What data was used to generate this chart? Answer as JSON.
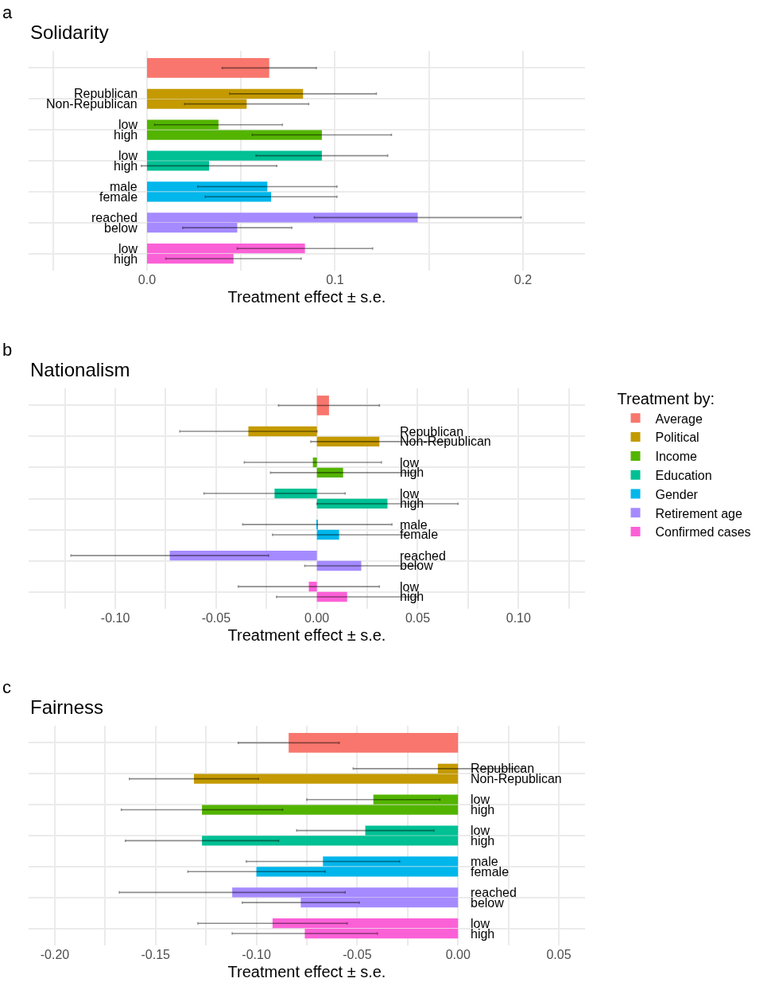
{
  "chart_data": [
    {
      "type": "bar",
      "orientation": "horizontal",
      "title": "Solidarity",
      "annotations": [
        "a"
      ],
      "xlabel": "Treatment effect ± s.e.",
      "grid": true,
      "legend": false,
      "categories": [
        null,
        "Republican",
        "Non-Republican",
        "low",
        "high",
        "low",
        "high",
        "male",
        "female",
        "reached",
        "below",
        "low",
        "high"
      ],
      "xlim": [
        -0.063,
        0.233
      ],
      "xticks": [
        {
          "value": -0.05,
          "label": null
        },
        {
          "value": 0,
          "label": "0.0"
        },
        {
          "value": 0.05,
          "label": null
        },
        {
          "value": 0.1,
          "label": "0.1"
        },
        {
          "value": 0.15,
          "label": null
        },
        {
          "value": 0.2,
          "label": "0.2"
        }
      ],
      "series": [
        {
          "color": "#f8766d",
          "values": [
            0.065,
            null,
            null,
            null,
            null,
            null,
            null,
            null,
            null,
            null,
            null,
            null,
            null
          ],
          "errors": [
            0.025,
            null,
            null,
            null,
            null,
            null,
            null,
            null,
            null,
            null,
            null,
            null,
            null
          ]
        },
        {
          "color": "#c49a00",
          "values": [
            null,
            0.083,
            0.053,
            null,
            null,
            null,
            null,
            null,
            null,
            null,
            null,
            null,
            null
          ],
          "errors": [
            null,
            0.039,
            0.033,
            null,
            null,
            null,
            null,
            null,
            null,
            null,
            null,
            null,
            null
          ]
        },
        {
          "color": "#53b400",
          "values": [
            null,
            null,
            null,
            0.038,
            0.093,
            null,
            null,
            null,
            null,
            null,
            null,
            null,
            null
          ],
          "errors": [
            null,
            null,
            null,
            0.034,
            0.037,
            null,
            null,
            null,
            null,
            null,
            null,
            null,
            null
          ]
        },
        {
          "color": "#00c094",
          "values": [
            null,
            null,
            null,
            null,
            null,
            0.093,
            0.033,
            null,
            null,
            null,
            null,
            null,
            null
          ],
          "errors": [
            null,
            null,
            null,
            null,
            null,
            0.035,
            0.036,
            null,
            null,
            null,
            null,
            null,
            null
          ]
        },
        {
          "color": "#00b6eb",
          "values": [
            null,
            null,
            null,
            null,
            null,
            null,
            null,
            0.064,
            0.066,
            null,
            null,
            null,
            null
          ],
          "errors": [
            null,
            null,
            null,
            null,
            null,
            null,
            null,
            0.037,
            0.035,
            null,
            null,
            null,
            null
          ]
        },
        {
          "color": "#a58aff",
          "values": [
            null,
            null,
            null,
            null,
            null,
            null,
            null,
            null,
            null,
            0.144,
            0.048,
            null,
            null
          ],
          "errors": [
            null,
            null,
            null,
            null,
            null,
            null,
            null,
            null,
            null,
            0.055,
            0.029,
            null,
            null
          ]
        },
        {
          "color": "#fb61d7",
          "values": [
            null,
            null,
            null,
            null,
            null,
            null,
            null,
            null,
            null,
            null,
            null,
            0.084,
            0.046
          ],
          "errors": [
            null,
            null,
            null,
            null,
            null,
            null,
            null,
            null,
            null,
            null,
            null,
            0.036,
            0.036
          ]
        }
      ]
    },
    {
      "type": "bar",
      "orientation": "horizontal",
      "title": "Nationalism",
      "annotations": [
        "b"
      ],
      "xlabel": "Treatment effect ± s.e.",
      "grid": true,
      "legend": "right",
      "legend_title": "Treatment by:",
      "categories": [
        null,
        "Republican",
        "Non-Republican",
        "low",
        "high",
        "low",
        "high",
        "male",
        "female",
        "reached",
        "below",
        "low",
        "high"
      ],
      "xlim": [
        -0.143,
        0.133
      ],
      "xticks": [
        {
          "value": -0.125,
          "label": null
        },
        {
          "value": -0.1,
          "label": "-0.10"
        },
        {
          "value": -0.075,
          "label": null
        },
        {
          "value": -0.05,
          "label": "-0.05"
        },
        {
          "value": -0.025,
          "label": null
        },
        {
          "value": 0,
          "label": "0.00"
        },
        {
          "value": 0.025,
          "label": null
        },
        {
          "value": 0.05,
          "label": "0.05"
        },
        {
          "value": 0.075,
          "label": null
        },
        {
          "value": 0.1,
          "label": "0.10"
        },
        {
          "value": 0.125,
          "label": null
        }
      ],
      "series": [
        {
          "name": "Average",
          "color": "#f8766d",
          "values": [
            0.006,
            null,
            null,
            null,
            null,
            null,
            null,
            null,
            null,
            null,
            null,
            null,
            null
          ],
          "errors": [
            0.025,
            null,
            null,
            null,
            null,
            null,
            null,
            null,
            null,
            null,
            null,
            null,
            null
          ]
        },
        {
          "name": "Political",
          "color": "#c49a00",
          "values": [
            null,
            -0.034,
            0.031,
            null,
            null,
            null,
            null,
            null,
            null,
            null,
            null,
            null,
            null
          ],
          "errors": [
            null,
            0.034,
            0.034,
            null,
            null,
            null,
            null,
            null,
            null,
            null,
            null,
            null,
            null
          ]
        },
        {
          "name": "Income",
          "color": "#53b400",
          "values": [
            null,
            null,
            null,
            -0.002,
            0.013,
            null,
            null,
            null,
            null,
            null,
            null,
            null,
            null
          ],
          "errors": [
            null,
            null,
            null,
            0.034,
            0.036,
            null,
            null,
            null,
            null,
            null,
            null,
            null,
            null
          ]
        },
        {
          "name": "Education",
          "color": "#00c094",
          "values": [
            null,
            null,
            null,
            null,
            null,
            -0.021,
            0.035,
            null,
            null,
            null,
            null,
            null,
            null
          ],
          "errors": [
            null,
            null,
            null,
            null,
            null,
            0.035,
            0.035,
            null,
            null,
            null,
            null,
            null,
            null
          ]
        },
        {
          "name": "Gender",
          "color": "#00b6eb",
          "values": [
            null,
            null,
            null,
            null,
            null,
            null,
            null,
            0.0002,
            0.011,
            null,
            null,
            null,
            null
          ],
          "errors": [
            null,
            null,
            null,
            null,
            null,
            null,
            null,
            0.037,
            0.033,
            null,
            null,
            null,
            null
          ]
        },
        {
          "name": "Retirement age",
          "color": "#a58aff",
          "values": [
            null,
            null,
            null,
            null,
            null,
            null,
            null,
            null,
            null,
            -0.073,
            0.022,
            null,
            null
          ],
          "errors": [
            null,
            null,
            null,
            null,
            null,
            null,
            null,
            null,
            null,
            0.049,
            0.028,
            null,
            null
          ]
        },
        {
          "name": "Confirmed cases",
          "color": "#fb61d7",
          "values": [
            null,
            null,
            null,
            null,
            null,
            null,
            null,
            null,
            null,
            null,
            null,
            -0.004,
            0.015
          ],
          "errors": [
            null,
            null,
            null,
            null,
            null,
            null,
            null,
            null,
            null,
            null,
            null,
            0.035,
            0.035
          ]
        }
      ]
    },
    {
      "type": "bar",
      "orientation": "horizontal",
      "title": "Fairness",
      "annotations": [
        "c"
      ],
      "xlabel": "Treatment effect ± s.e.",
      "grid": true,
      "legend": false,
      "categories": [
        null,
        "Republican",
        "Non-Republican",
        "low",
        "high",
        "low",
        "high",
        "male",
        "female",
        "reached",
        "below",
        "low",
        "high"
      ],
      "xlim": [
        -0.213,
        0.063
      ],
      "xticks": [
        {
          "value": -0.2,
          "label": "-0.20"
        },
        {
          "value": -0.175,
          "label": null
        },
        {
          "value": -0.15,
          "label": "-0.15"
        },
        {
          "value": -0.125,
          "label": null
        },
        {
          "value": -0.1,
          "label": "-0.10"
        },
        {
          "value": -0.075,
          "label": null
        },
        {
          "value": -0.05,
          "label": "-0.05"
        },
        {
          "value": -0.025,
          "label": null
        },
        {
          "value": 0,
          "label": "0.00"
        },
        {
          "value": 0.025,
          "label": null
        },
        {
          "value": 0.05,
          "label": "0.05"
        }
      ],
      "series": [
        {
          "color": "#f8766d",
          "values": [
            -0.084,
            null,
            null,
            null,
            null,
            null,
            null,
            null,
            null,
            null,
            null,
            null,
            null
          ],
          "errors": [
            0.025,
            null,
            null,
            null,
            null,
            null,
            null,
            null,
            null,
            null,
            null,
            null,
            null
          ]
        },
        {
          "color": "#c49a00",
          "values": [
            null,
            -0.01,
            -0.131,
            null,
            null,
            null,
            null,
            null,
            null,
            null,
            null,
            null,
            null
          ],
          "errors": [
            null,
            0.042,
            0.032,
            null,
            null,
            null,
            null,
            null,
            null,
            null,
            null,
            null,
            null
          ]
        },
        {
          "color": "#53b400",
          "values": [
            null,
            null,
            null,
            -0.042,
            -0.127,
            null,
            null,
            null,
            null,
            null,
            null,
            null,
            null
          ],
          "errors": [
            null,
            null,
            null,
            0.033,
            0.04,
            null,
            null,
            null,
            null,
            null,
            null,
            null,
            null
          ]
        },
        {
          "color": "#00c094",
          "values": [
            null,
            null,
            null,
            null,
            null,
            -0.046,
            -0.127,
            null,
            null,
            null,
            null,
            null,
            null
          ],
          "errors": [
            null,
            null,
            null,
            null,
            null,
            0.034,
            0.038,
            null,
            null,
            null,
            null,
            null,
            null
          ]
        },
        {
          "color": "#00b6eb",
          "values": [
            null,
            null,
            null,
            null,
            null,
            null,
            null,
            -0.067,
            -0.1,
            null,
            null,
            null,
            null
          ],
          "errors": [
            null,
            null,
            null,
            null,
            null,
            null,
            null,
            0.038,
            0.034,
            null,
            null,
            null,
            null
          ]
        },
        {
          "color": "#a58aff",
          "values": [
            null,
            null,
            null,
            null,
            null,
            null,
            null,
            null,
            null,
            -0.112,
            -0.078,
            null,
            null
          ],
          "errors": [
            null,
            null,
            null,
            null,
            null,
            null,
            null,
            null,
            null,
            0.056,
            0.029,
            null,
            null
          ]
        },
        {
          "color": "#fb61d7",
          "values": [
            null,
            null,
            null,
            null,
            null,
            null,
            null,
            null,
            null,
            null,
            null,
            -0.092,
            -0.076
          ],
          "errors": [
            null,
            null,
            null,
            null,
            null,
            null,
            null,
            null,
            null,
            null,
            null,
            0.037,
            0.036
          ]
        }
      ]
    }
  ]
}
